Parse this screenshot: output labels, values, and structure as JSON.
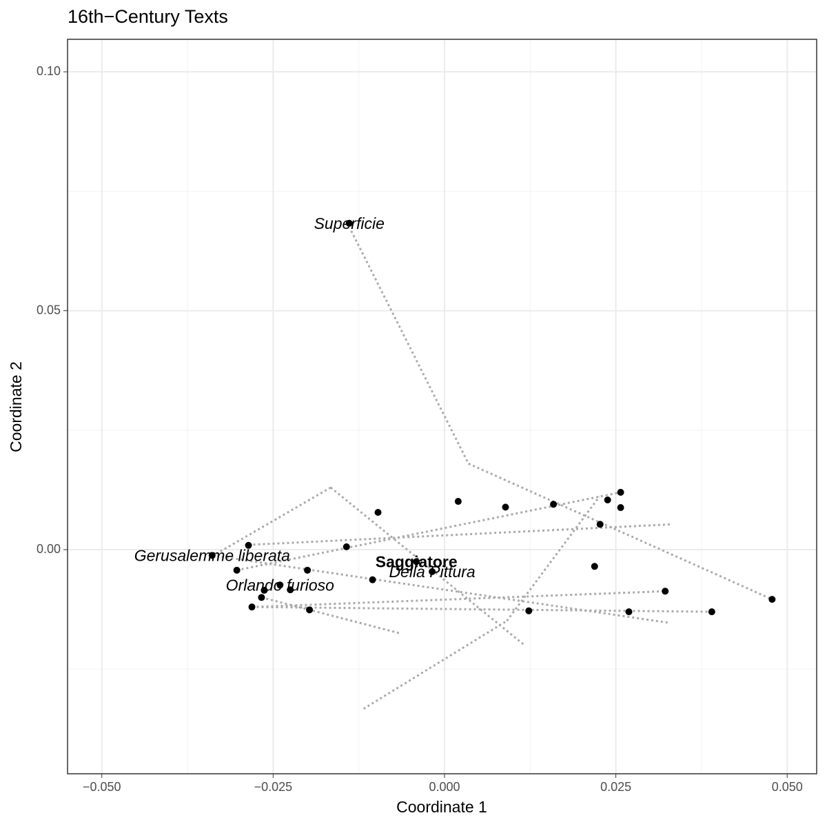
{
  "chart_data": {
    "type": "scatter",
    "title": "16th−Century Texts",
    "x_label": "Coordinate 1",
    "y_label": "Coordinate 2",
    "xlim": [
      -0.055,
      0.0543
    ],
    "ylim": [
      -0.0469,
      0.1068
    ],
    "xticks": [
      {
        "value": -0.05,
        "label": "−0.050"
      },
      {
        "value": -0.025,
        "label": "−0.025"
      },
      {
        "value": 0,
        "label": "0.000"
      },
      0.025,
      {
        "value": 0.05,
        "label": "0.050"
      }
    ],
    "yticks": [
      {
        "value": 0,
        "label": "0.00"
      },
      0.05,
      {
        "value": 0.1,
        "label": "0.10"
      }
    ],
    "minor_xticks": [
      -0.0375,
      -0.0125,
      0.0125,
      0.0375
    ],
    "minor_yticks": [
      -0.025,
      0.025,
      0.075
    ],
    "grid": true,
    "color": "#000000",
    "segment_color": "#aaaaaa",
    "x": [
      -0.0139,
      -0.0339,
      -0.0286,
      -0.0303,
      -0.0263,
      -0.0267,
      -0.0281,
      -0.024,
      -0.0225,
      -0.02,
      -0.0197,
      -0.0143,
      -0.0097,
      -0.0105,
      -0.0041,
      -0.0018,
      0.002,
      0.0089,
      0.0123,
      0.0159,
      0.0219,
      0.0227,
      0.0238,
      0.0257,
      0.0257,
      0.0269,
      0.0322,
      0.039,
      0.0478
    ],
    "y": [
      0.0683,
      -0.0012,
      0.0009,
      -0.0043,
      -0.0085,
      -0.01,
      -0.012,
      -0.0074,
      -0.0084,
      -0.0043,
      -0.0126,
      0.0006,
      0.0078,
      -0.0063,
      -0.0025,
      -0.0046,
      0.0101,
      0.0089,
      -0.0128,
      0.0095,
      -0.0035,
      0.0053,
      0.0104,
      0.012,
      0.0088,
      -0.013,
      -0.0087,
      -0.013,
      -0.0104
    ],
    "labels": [
      "Superficie",
      "Gerusalemme liberata",
      null,
      null,
      null,
      null,
      null,
      "Orlando furioso",
      null,
      null,
      null,
      null,
      null,
      null,
      "Saggiatore",
      "Della Pittura",
      null,
      null,
      null,
      null,
      null,
      null,
      null,
      null,
      null,
      null,
      null,
      null,
      null
    ],
    "highlight_index": 14,
    "segments": [
      [
        -0.0136,
        0.0667,
        0.0035,
        0.018
      ],
      [
        0.0035,
        0.018,
        0.0478,
        -0.0104
      ],
      [
        -0.0166,
        0.013,
        -0.0337,
        -0.0012
      ],
      [
        -0.0166,
        0.013,
        0.0116,
        -0.0199
      ],
      [
        -0.0118,
        -0.0333,
        0.0091,
        -0.0149
      ],
      [
        0.0091,
        -0.0149,
        0.0226,
        0.0111
      ],
      [
        -0.0286,
        0.001,
        0.0332,
        0.0053
      ],
      [
        -0.0339,
        -0.0012,
        0.0327,
        -0.0153
      ],
      [
        -0.0281,
        -0.012,
        0.0322,
        -0.0087
      ],
      [
        -0.0303,
        -0.0043,
        0.0257,
        0.012
      ],
      [
        -0.0267,
        -0.01,
        -0.0065,
        -0.0175
      ],
      [
        -0.0281,
        -0.012,
        0.039,
        -0.013
      ]
    ]
  }
}
